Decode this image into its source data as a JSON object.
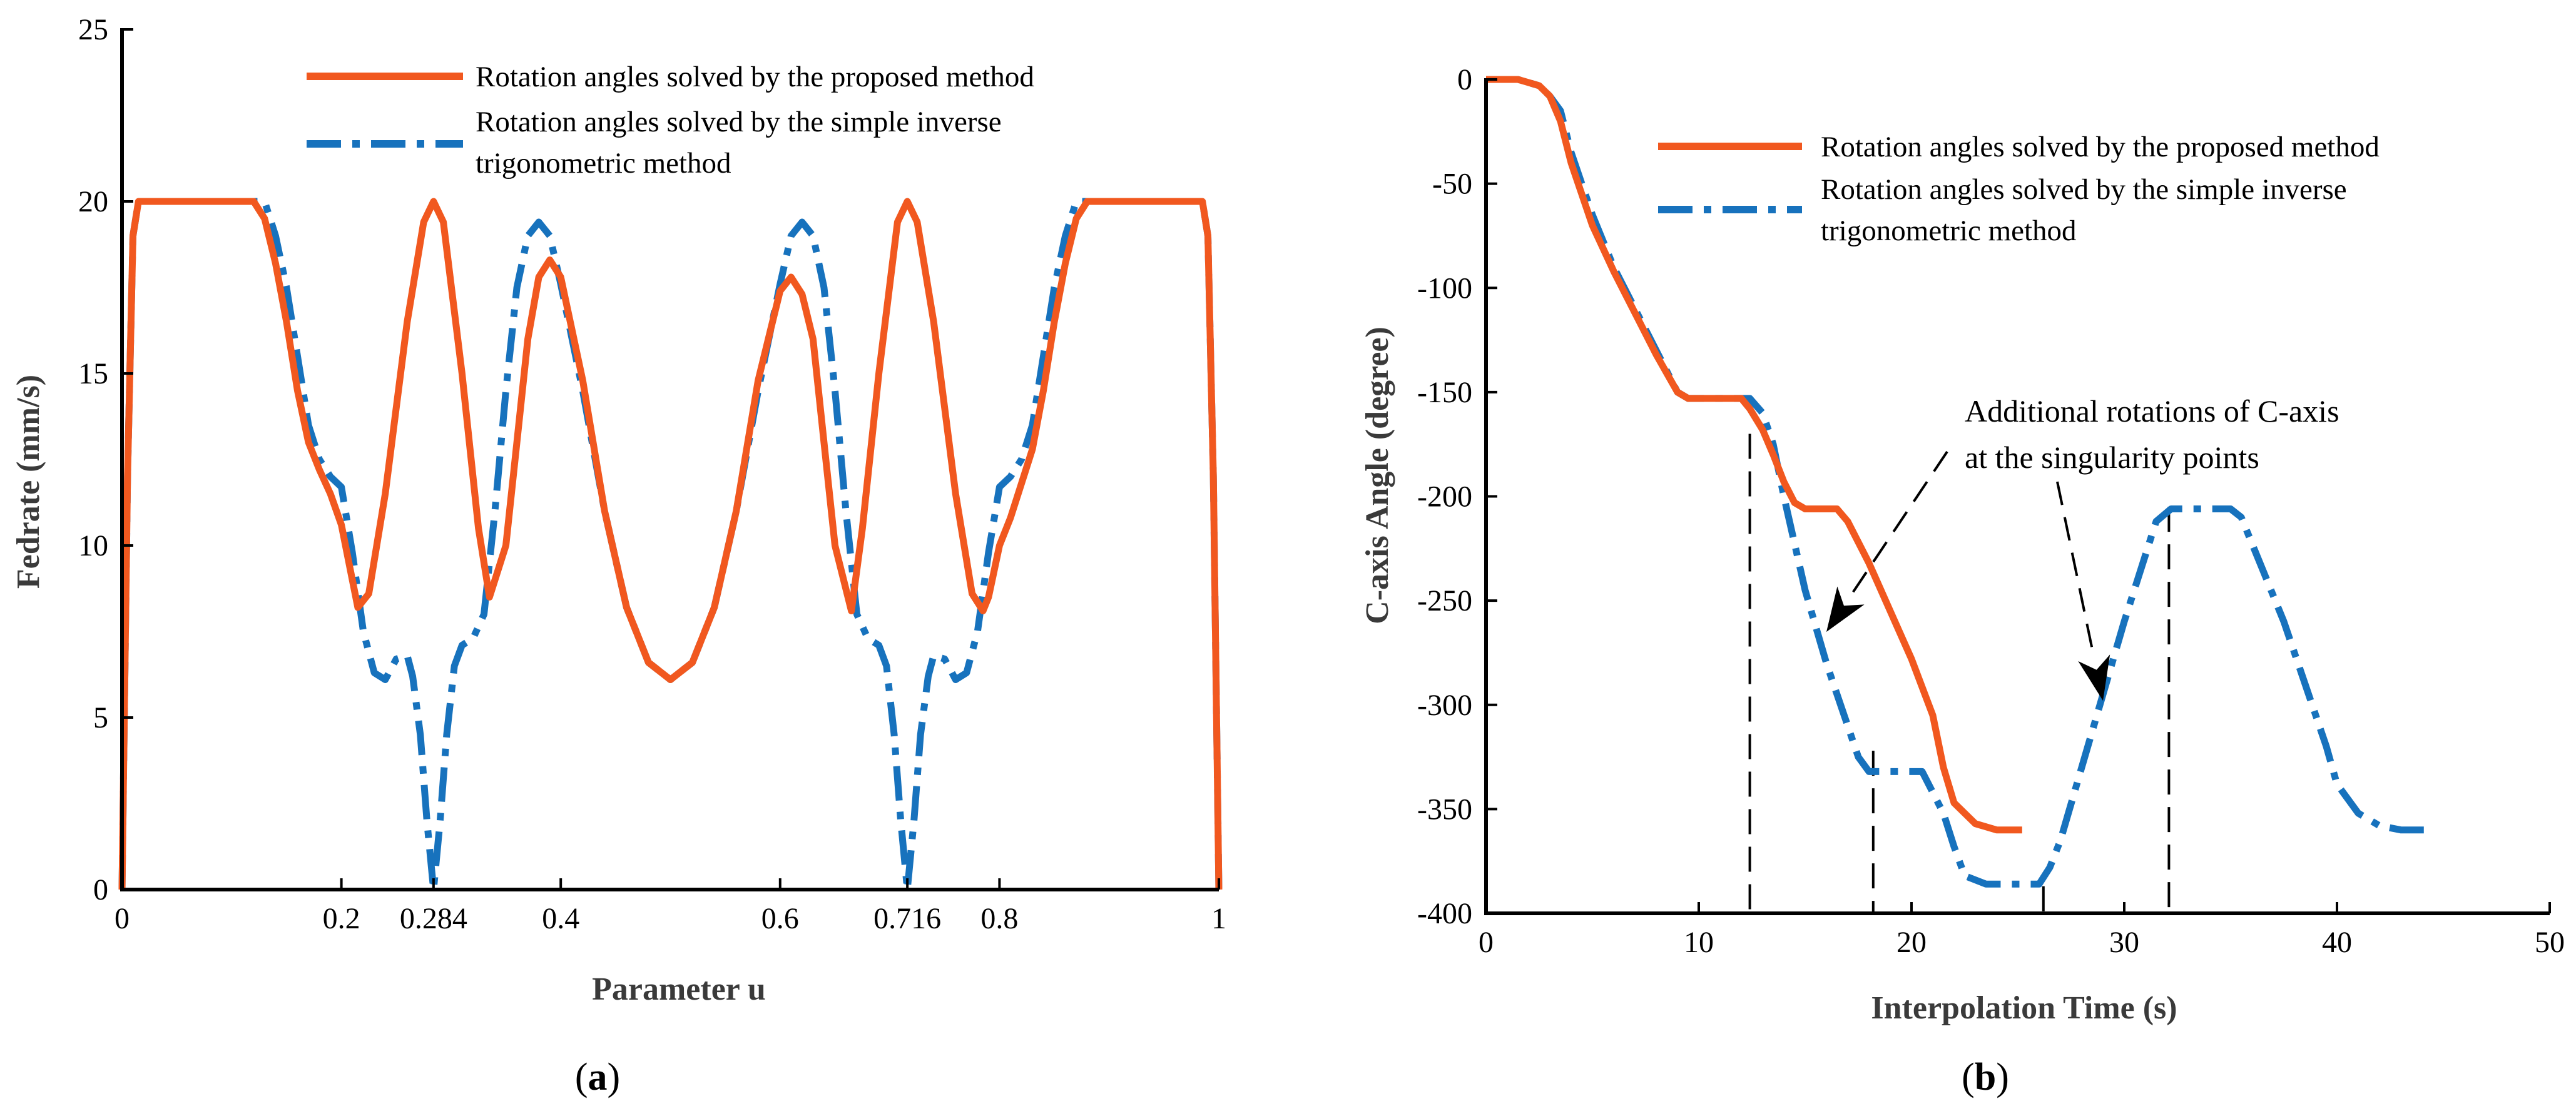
{
  "colors": {
    "proposed": "#F1581F",
    "inverse": "#1772BD",
    "axis": "#000000",
    "guide": "#000000"
  },
  "captions": {
    "a_open": "(",
    "a_letter": "a",
    "a_close": ")",
    "b_open": "(",
    "b_letter": "b",
    "b_close": ")"
  },
  "chart_data": [
    {
      "id": "a",
      "type": "line",
      "title": "",
      "xlabel": "Parameter u",
      "ylabel": "Fedrate (mm/s)",
      "xlim": [
        0,
        1
      ],
      "ylim": [
        0,
        25
      ],
      "xticks": [
        0,
        0.2,
        0.284,
        0.4,
        0.6,
        0.716,
        0.8,
        1
      ],
      "xtick_labels": [
        "0",
        "0.2",
        "0.284",
        "0.4",
        "0.6",
        "0.716",
        "0.8",
        "1"
      ],
      "yticks": [
        0,
        5,
        10,
        15,
        20,
        25
      ],
      "ytick_labels": [
        "0",
        "5",
        "10",
        "15",
        "20",
        "25"
      ],
      "legend": {
        "position": "top",
        "entries": [
          {
            "key": "proposed",
            "lines": [
              "Rotation angles solved by the proposed method"
            ]
          },
          {
            "key": "inverse",
            "lines": [
              "Rotation angles solved by the simple inverse",
              "trigonometric method"
            ]
          }
        ]
      },
      "series": [
        {
          "name": "Rotation angles solved by the proposed method",
          "key": "proposed",
          "style": "solid",
          "points": [
            [
              0,
              0
            ],
            [
              0.005,
              12
            ],
            [
              0.01,
              19
            ],
            [
              0.015,
              20
            ],
            [
              0.12,
              20
            ],
            [
              0.13,
              19.5
            ],
            [
              0.14,
              18.2
            ],
            [
              0.15,
              16.5
            ],
            [
              0.16,
              14.5
            ],
            [
              0.17,
              13
            ],
            [
              0.18,
              12.2
            ],
            [
              0.19,
              11.5
            ],
            [
              0.2,
              10.6
            ],
            [
              0.21,
              9
            ],
            [
              0.215,
              8.2
            ],
            [
              0.225,
              8.6
            ],
            [
              0.24,
              11.5
            ],
            [
              0.26,
              16.5
            ],
            [
              0.275,
              19.4
            ],
            [
              0.284,
              20
            ],
            [
              0.293,
              19.4
            ],
            [
              0.31,
              15
            ],
            [
              0.325,
              10.5
            ],
            [
              0.335,
              8.5
            ],
            [
              0.35,
              10
            ],
            [
              0.36,
              13
            ],
            [
              0.37,
              16
            ],
            [
              0.38,
              17.8
            ],
            [
              0.39,
              18.3
            ],
            [
              0.4,
              17.8
            ],
            [
              0.42,
              14.8
            ],
            [
              0.44,
              11
            ],
            [
              0.46,
              8.2
            ],
            [
              0.48,
              6.6
            ],
            [
              0.5,
              6.1
            ],
            [
              0.52,
              6.6
            ],
            [
              0.54,
              8.2
            ],
            [
              0.56,
              11
            ],
            [
              0.58,
              14.8
            ],
            [
              0.6,
              17.4
            ],
            [
              0.61,
              17.8
            ],
            [
              0.62,
              17.3
            ],
            [
              0.63,
              16
            ],
            [
              0.64,
              13
            ],
            [
              0.65,
              10
            ],
            [
              0.665,
              8.1
            ],
            [
              0.675,
              10.5
            ],
            [
              0.69,
              15
            ],
            [
              0.707,
              19.4
            ],
            [
              0.716,
              20
            ],
            [
              0.725,
              19.4
            ],
            [
              0.74,
              16.5
            ],
            [
              0.76,
              11.5
            ],
            [
              0.775,
              8.6
            ],
            [
              0.785,
              8.1
            ],
            [
              0.79,
              8.5
            ],
            [
              0.8,
              10
            ],
            [
              0.81,
              10.8
            ],
            [
              0.82,
              11.8
            ],
            [
              0.83,
              12.8
            ],
            [
              0.84,
              14.5
            ],
            [
              0.85,
              16.5
            ],
            [
              0.86,
              18.2
            ],
            [
              0.87,
              19.5
            ],
            [
              0.88,
              20
            ],
            [
              0.985,
              20
            ],
            [
              0.99,
              19
            ],
            [
              0.995,
              12
            ],
            [
              1,
              0
            ]
          ]
        },
        {
          "name": "Rotation angles solved by the simple inverse trigonometric method",
          "key": "inverse",
          "style": "dashdot",
          "points": [
            [
              0,
              0
            ],
            [
              0.005,
              12
            ],
            [
              0.01,
              19
            ],
            [
              0.015,
              20
            ],
            [
              0.13,
              20
            ],
            [
              0.14,
              19
            ],
            [
              0.15,
              17.5
            ],
            [
              0.16,
              15.5
            ],
            [
              0.17,
              13.5
            ],
            [
              0.18,
              12.5
            ],
            [
              0.19,
              12
            ],
            [
              0.2,
              11.7
            ],
            [
              0.21,
              9.8
            ],
            [
              0.22,
              7.5
            ],
            [
              0.23,
              6.3
            ],
            [
              0.24,
              6.1
            ],
            [
              0.25,
              6.7
            ],
            [
              0.26,
              6.8
            ],
            [
              0.265,
              6.2
            ],
            [
              0.272,
              4.5
            ],
            [
              0.278,
              2
            ],
            [
              0.284,
              0
            ],
            [
              0.29,
              2
            ],
            [
              0.296,
              4.5
            ],
            [
              0.303,
              6.5
            ],
            [
              0.31,
              7.1
            ],
            [
              0.32,
              7.3
            ],
            [
              0.33,
              8
            ],
            [
              0.34,
              11
            ],
            [
              0.35,
              14.5
            ],
            [
              0.36,
              17.5
            ],
            [
              0.37,
              19
            ],
            [
              0.38,
              19.4
            ],
            [
              0.39,
              19
            ],
            [
              0.4,
              17.6
            ],
            [
              0.42,
              14.5
            ],
            [
              0.44,
              11
            ],
            [
              0.46,
              8.2
            ],
            [
              0.48,
              6.6
            ],
            [
              0.5,
              6.1
            ],
            [
              0.52,
              6.6
            ],
            [
              0.54,
              8.2
            ],
            [
              0.56,
              11
            ],
            [
              0.58,
              14.5
            ],
            [
              0.6,
              17.6
            ],
            [
              0.61,
              19
            ],
            [
              0.62,
              19.4
            ],
            [
              0.63,
              19
            ],
            [
              0.64,
              17.5
            ],
            [
              0.65,
              14.5
            ],
            [
              0.66,
              11
            ],
            [
              0.67,
              8
            ],
            [
              0.68,
              7.3
            ],
            [
              0.69,
              7.1
            ],
            [
              0.697,
              6.5
            ],
            [
              0.704,
              4.5
            ],
            [
              0.71,
              2
            ],
            [
              0.716,
              0
            ],
            [
              0.722,
              2
            ],
            [
              0.728,
              4.5
            ],
            [
              0.735,
              6.2
            ],
            [
              0.74,
              6.8
            ],
            [
              0.75,
              6.7
            ],
            [
              0.76,
              6.1
            ],
            [
              0.77,
              6.3
            ],
            [
              0.78,
              7.5
            ],
            [
              0.79,
              9.8
            ],
            [
              0.8,
              11.7
            ],
            [
              0.81,
              12
            ],
            [
              0.82,
              12.5
            ],
            [
              0.83,
              13.5
            ],
            [
              0.84,
              15.5
            ],
            [
              0.85,
              17.5
            ],
            [
              0.86,
              19
            ],
            [
              0.87,
              20
            ],
            [
              0.985,
              20
            ],
            [
              0.99,
              19
            ],
            [
              0.995,
              12
            ],
            [
              1,
              0
            ]
          ]
        }
      ]
    },
    {
      "id": "b",
      "type": "line",
      "title": "",
      "xlabel": "Interpolation Time (s)",
      "ylabel": "C-axis Angle (degree)",
      "xlim": [
        0,
        50
      ],
      "ylim": [
        -400,
        0
      ],
      "xticks": [
        0,
        10,
        20,
        30,
        40,
        50
      ],
      "xtick_labels": [
        "0",
        "10",
        "20",
        "30",
        "40",
        "50"
      ],
      "yticks": [
        0,
        -50,
        -100,
        -150,
        -200,
        -250,
        -300,
        -350,
        -400
      ],
      "ytick_labels": [
        "0",
        "-50",
        "-100",
        "-150",
        "-200",
        "-250",
        "-300",
        "-350",
        "-400"
      ],
      "legend": {
        "position": "top-right",
        "entries": [
          {
            "key": "proposed",
            "lines": [
              "Rotation angles solved by the proposed method"
            ]
          },
          {
            "key": "inverse",
            "lines": [
              "Rotation angles solved by the simple inverse",
              "trigonometric method"
            ]
          }
        ]
      },
      "annotation": {
        "lines": [
          "Additional rotations of C-axis",
          "at the singularity points"
        ],
        "arrow_targets": [
          [
            16,
            -265
          ],
          [
            29,
            -298
          ]
        ]
      },
      "guides_x": [
        12.4,
        18.2,
        26.2,
        32.1
      ],
      "series": [
        {
          "name": "Rotation angles solved by the proposed method",
          "key": "proposed",
          "style": "solid",
          "points": [
            [
              0,
              0
            ],
            [
              1.5,
              0
            ],
            [
              2.5,
              -3
            ],
            [
              3,
              -8
            ],
            [
              3.5,
              -20
            ],
            [
              4,
              -40
            ],
            [
              5,
              -70
            ],
            [
              6,
              -92
            ],
            [
              7,
              -112
            ],
            [
              8,
              -132
            ],
            [
              9,
              -150
            ],
            [
              9.5,
              -153
            ],
            [
              12,
              -153
            ],
            [
              12.4,
              -158
            ],
            [
              13,
              -168
            ],
            [
              13.5,
              -180
            ],
            [
              14,
              -193
            ],
            [
              14.5,
              -203
            ],
            [
              15,
              -206
            ],
            [
              16.5,
              -206
            ],
            [
              17,
              -212
            ],
            [
              18,
              -232
            ],
            [
              19,
              -255
            ],
            [
              20,
              -278
            ],
            [
              21,
              -305
            ],
            [
              21.5,
              -330
            ],
            [
              22,
              -347
            ],
            [
              23,
              -357
            ],
            [
              24,
              -360
            ],
            [
              25.2,
              -360
            ]
          ]
        },
        {
          "name": "Rotation angles solved by the simple inverse trigonometric method",
          "key": "inverse",
          "style": "dashdot",
          "points": [
            [
              0,
              0
            ],
            [
              1.5,
              0
            ],
            [
              2.5,
              -3
            ],
            [
              3,
              -8
            ],
            [
              3.5,
              -15
            ],
            [
              4,
              -35
            ],
            [
              5,
              -65
            ],
            [
              6,
              -90
            ],
            [
              7,
              -110
            ],
            [
              8,
              -130
            ],
            [
              9,
              -150
            ],
            [
              9.5,
              -153
            ],
            [
              12.4,
              -153
            ],
            [
              13,
              -160
            ],
            [
              13.5,
              -175
            ],
            [
              14,
              -200
            ],
            [
              15,
              -245
            ],
            [
              16,
              -280
            ],
            [
              17,
              -310
            ],
            [
              17.5,
              -325
            ],
            [
              18,
              -332
            ],
            [
              20.5,
              -332
            ],
            [
              21.5,
              -352
            ],
            [
              22,
              -368
            ],
            [
              22.5,
              -382
            ],
            [
              23.5,
              -386
            ],
            [
              26,
              -386
            ],
            [
              26.5,
              -378
            ],
            [
              27,
              -365
            ],
            [
              28,
              -330
            ],
            [
              29,
              -295
            ],
            [
              30,
              -260
            ],
            [
              31,
              -228
            ],
            [
              31.5,
              -212
            ],
            [
              32.2,
              -206
            ],
            [
              35,
              -206
            ],
            [
              35.5,
              -210
            ],
            [
              36.5,
              -235
            ],
            [
              37.5,
              -260
            ],
            [
              38.5,
              -290
            ],
            [
              39.5,
              -320
            ],
            [
              40,
              -338
            ],
            [
              41,
              -352
            ],
            [
              42,
              -358
            ],
            [
              43,
              -360
            ],
            [
              44.5,
              -360
            ]
          ]
        }
      ]
    }
  ]
}
